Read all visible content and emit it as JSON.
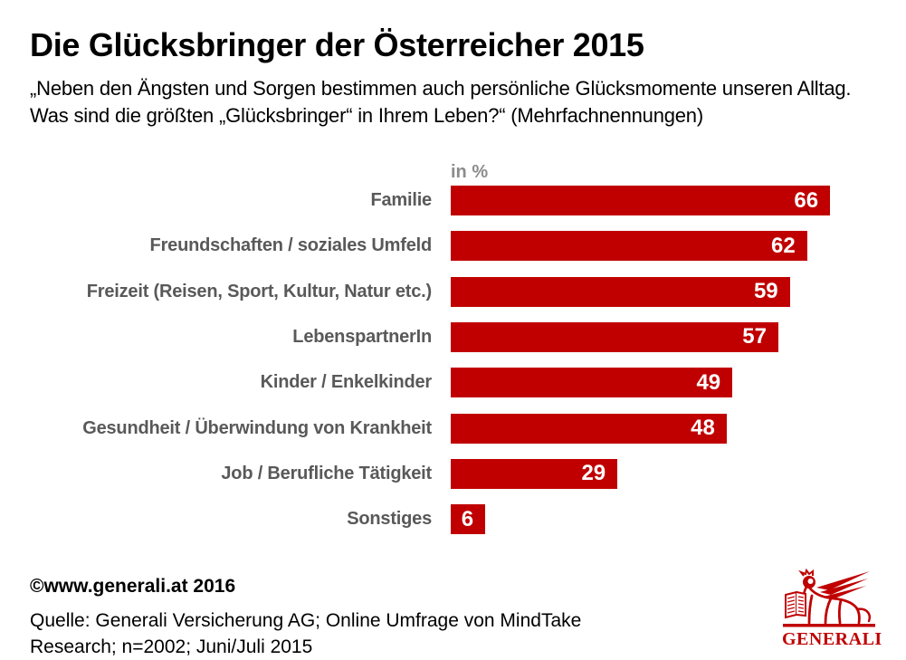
{
  "header": {
    "title": "Die Glücksbringer der Österreicher 2015",
    "subtitle_line1": "„Neben den Ängsten und Sorgen bestimmen auch persönliche Glücksmomente unseren Alltag.",
    "subtitle_line2": "Was sind die größten „Glücksbringer“ in Ihrem Leben?“ (Mehrfachnennungen)"
  },
  "chart_data": {
    "type": "bar",
    "orientation": "horizontal",
    "title": "Die Glücksbringer der Österreicher 2015",
    "unit_label": "in %",
    "categories": [
      "Familie",
      "Freundschaften / soziales Umfeld",
      "Freizeit (Reisen, Sport, Kultur, Natur etc.)",
      "LebenspartnerIn",
      "Kinder / Enkelkinder",
      "Gesundheit / Überwindung von Krankheit",
      "Job / Berufliche Tätigkeit",
      "Sonstiges"
    ],
    "values": [
      66,
      62,
      59,
      57,
      49,
      48,
      29,
      6
    ],
    "xlim": [
      0,
      70
    ],
    "grid": false,
    "value_labels": "inside-end",
    "bar_color": "#c00000",
    "value_label_color": "#ffffff",
    "category_label_color": "#595959"
  },
  "footer": {
    "copyright": "©www.generali.at 2016",
    "source_line1": "Quelle: Generali Versicherung AG; Online Umfrage von MindTake",
    "source_line2": "Research; n=2002; Juni/Juli 2015"
  },
  "logo": {
    "brand": "GENERALI",
    "icon": "winged-lion-icon",
    "color": "#c00000"
  }
}
